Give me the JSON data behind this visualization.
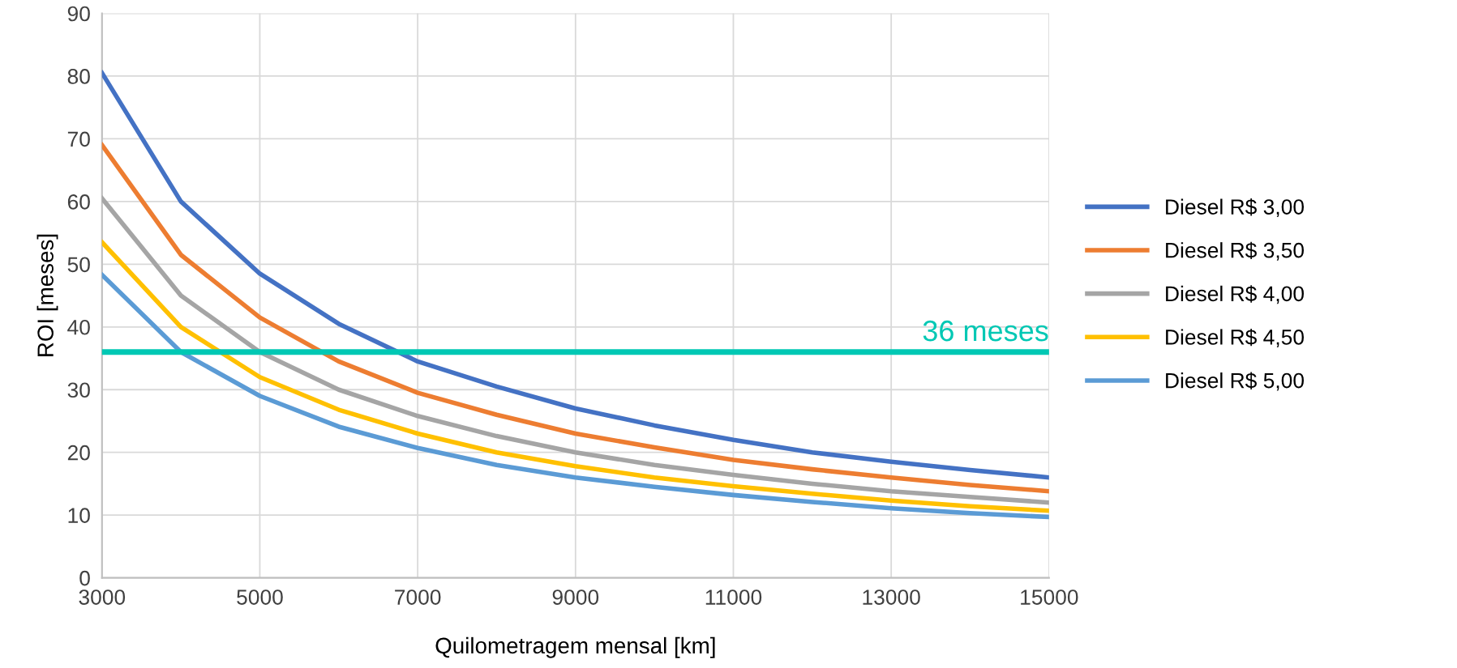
{
  "chart_data": {
    "type": "line",
    "xlabel": "Quilometragem mensal [km]",
    "ylabel": "ROI [meses]",
    "x": [
      3000,
      4000,
      5000,
      6000,
      7000,
      8000,
      9000,
      10000,
      11000,
      12000,
      13000,
      14000,
      15000
    ],
    "xlim": [
      3000,
      15000
    ],
    "xticks": [
      3000,
      5000,
      7000,
      9000,
      11000,
      13000,
      15000
    ],
    "ylim": [
      0,
      90
    ],
    "yticks": [
      0,
      10,
      20,
      30,
      40,
      50,
      60,
      70,
      80,
      90
    ],
    "grid": true,
    "legend": "right",
    "marker": "none",
    "line_style": "solid",
    "series": [
      {
        "name": "Diesel R$ 3,00",
        "color": "#4472c4",
        "values": [
          80.5,
          60,
          48.5,
          40.5,
          34.5,
          30.5,
          27,
          24.3,
          22,
          20,
          18.5,
          17.2,
          16
        ]
      },
      {
        "name": "Diesel R$ 3,50",
        "color": "#ed7d31",
        "values": [
          69,
          51.5,
          41.5,
          34.5,
          29.5,
          26,
          23,
          20.8,
          18.8,
          17.3,
          16,
          14.8,
          13.8
        ]
      },
      {
        "name": "Diesel R$ 4,00",
        "color": "#a5a5a5",
        "values": [
          60.5,
          45,
          36,
          30,
          25.8,
          22.6,
          20,
          18,
          16.4,
          15,
          13.8,
          12.9,
          12
        ]
      },
      {
        "name": "Diesel R$ 4,50",
        "color": "#ffc000",
        "values": [
          53.5,
          40,
          32,
          26.8,
          23,
          20,
          17.8,
          16,
          14.6,
          13.4,
          12.3,
          11.4,
          10.7
        ]
      },
      {
        "name": "Diesel R$ 5,00",
        "color": "#5b9bd5",
        "values": [
          48.3,
          36,
          29,
          24.1,
          20.7,
          18,
          16,
          14.5,
          13.2,
          12.1,
          11.1,
          10.3,
          9.7
        ]
      }
    ],
    "ref_lines": [
      {
        "axis": "y",
        "value": 36,
        "label": "36 meses",
        "color": "#00c8b4",
        "line_style": "solid"
      }
    ]
  }
}
